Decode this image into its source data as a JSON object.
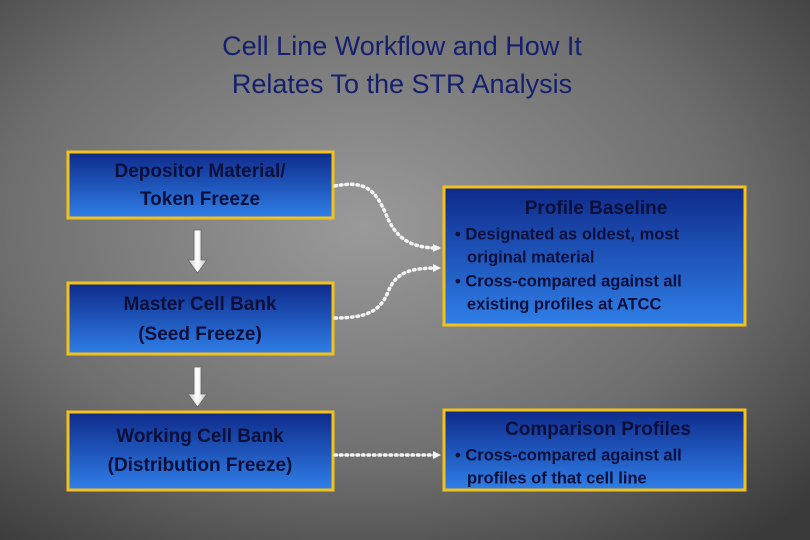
{
  "title": {
    "lines": [
      "Cell Line Workflow and How It",
      "Relates To the STR Analysis"
    ]
  },
  "left_boxes": [
    {
      "lines": [
        "Depositor Material/",
        "Token Freeze"
      ]
    },
    {
      "lines": [
        "Master Cell Bank",
        "(Seed Freeze)"
      ]
    },
    {
      "lines": [
        "Working Cell Bank",
        "(Distribution Freeze)"
      ]
    }
  ],
  "right_boxes": [
    {
      "heading": "Profile Baseline",
      "bullets": [
        [
          "• Designated as oldest, most",
          "original material"
        ],
        [
          "• Cross-compared against all",
          "existing profiles at ATCC"
        ]
      ]
    },
    {
      "heading": "Comparison Profiles",
      "bullets": [
        [
          "• Cross-compared against all",
          "profiles of that cell line"
        ]
      ]
    }
  ]
}
